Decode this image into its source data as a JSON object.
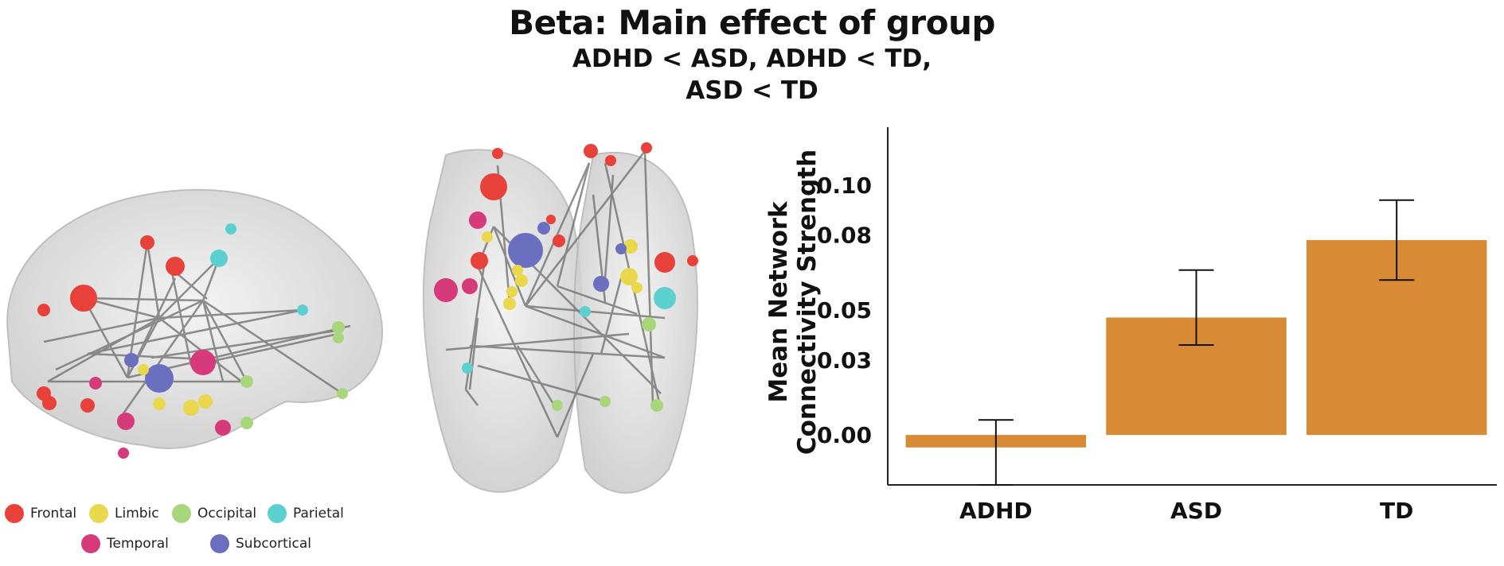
{
  "title": "Beta: Main effect of group",
  "subtitle": "ADHD < ASD, ADHD < TD,\nASD < TD",
  "legend": [
    {
      "label": "Frontal",
      "color": "#e8413a"
    },
    {
      "label": "Limbic",
      "color": "#e9d84c"
    },
    {
      "label": "Occipital",
      "color": "#a8d67a"
    },
    {
      "label": "Parietal",
      "color": "#5ccfd0"
    },
    {
      "label": "Temporal",
      "color": "#d63a7a"
    },
    {
      "label": "Subcortical",
      "color": "#6a6fc0"
    }
  ],
  "chart_data": {
    "type": "bar",
    "categories": [
      "ADHD",
      "ASD",
      "TD"
    ],
    "values": [
      -0.005,
      0.047,
      0.078
    ],
    "error_low": [
      -0.02,
      0.036,
      0.062
    ],
    "error_high": [
      0.006,
      0.066,
      0.094
    ],
    "ylabel": "Mean Network\nConnectivity Strength",
    "xlabel": "",
    "ylim": [
      -0.02,
      0.12
    ],
    "yticks": [
      0.0,
      0.03,
      0.05,
      0.08,
      0.1
    ],
    "ytick_labels": [
      "0.00",
      "0.03",
      "0.05",
      "0.08",
      "0.10"
    ],
    "bar_color": "#d88a34",
    "grid": false
  }
}
